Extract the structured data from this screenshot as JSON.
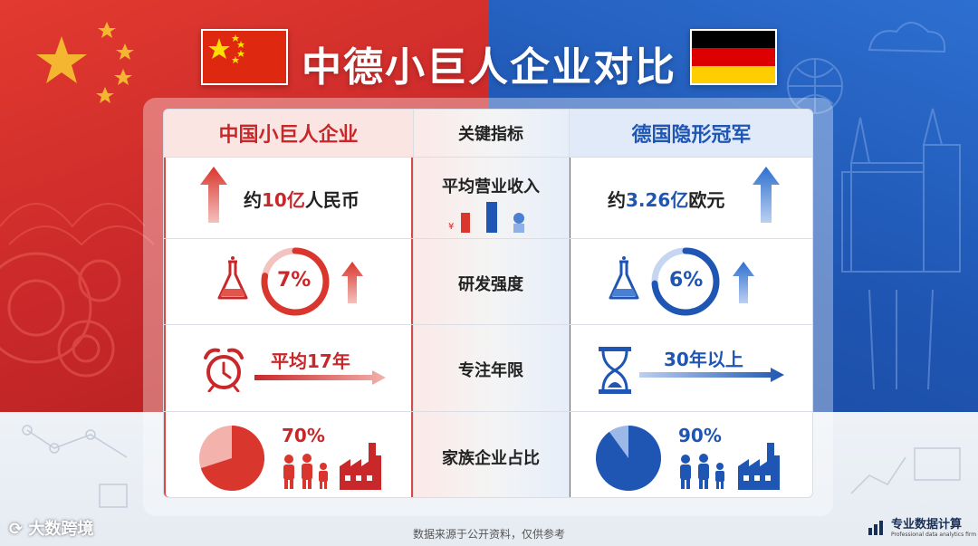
{
  "title": "中德小巨人企业对比",
  "colors": {
    "china_red": "#c9282a",
    "germany_blue": "#1f56b3",
    "de_black": "#000000",
    "de_red": "#dd0000",
    "de_gold": "#ffce00"
  },
  "header": {
    "left": "中国小巨人企业",
    "middle": "关键指标",
    "right": "德国隐形冠军"
  },
  "rows": [
    {
      "metric": "平均营业收入",
      "left_prefix": "约",
      "left_value": "10亿",
      "left_suffix": "人民币",
      "right_prefix": "约",
      "right_value": "3.26亿",
      "right_suffix": "欧元"
    },
    {
      "metric": "研发强度",
      "left_value": "7%",
      "right_value": "6%",
      "left_fraction": 0.07,
      "right_fraction": 0.06
    },
    {
      "metric": "专注年限",
      "left_value": "平均17年",
      "right_value": "30年以上"
    },
    {
      "metric": "家族企业占比",
      "left_value": "70%",
      "right_value": "90%",
      "left_fraction": 0.7,
      "right_fraction": 0.9
    }
  ],
  "icons": {
    "up_arrow": "up-arrow-icon",
    "flask": "flask-icon",
    "alarm_clock": "alarm-clock-icon",
    "hourglass": "hourglass-icon",
    "family": "family-icon",
    "factory": "factory-icon",
    "currency": "currency-chart-icon"
  },
  "footer": {
    "note": "数据来源于公开资料，仅供参考",
    "brand_left": "大数跨境",
    "brand_right": "专业数据计算",
    "brand_right_sub": "Professional data analytics firm"
  }
}
